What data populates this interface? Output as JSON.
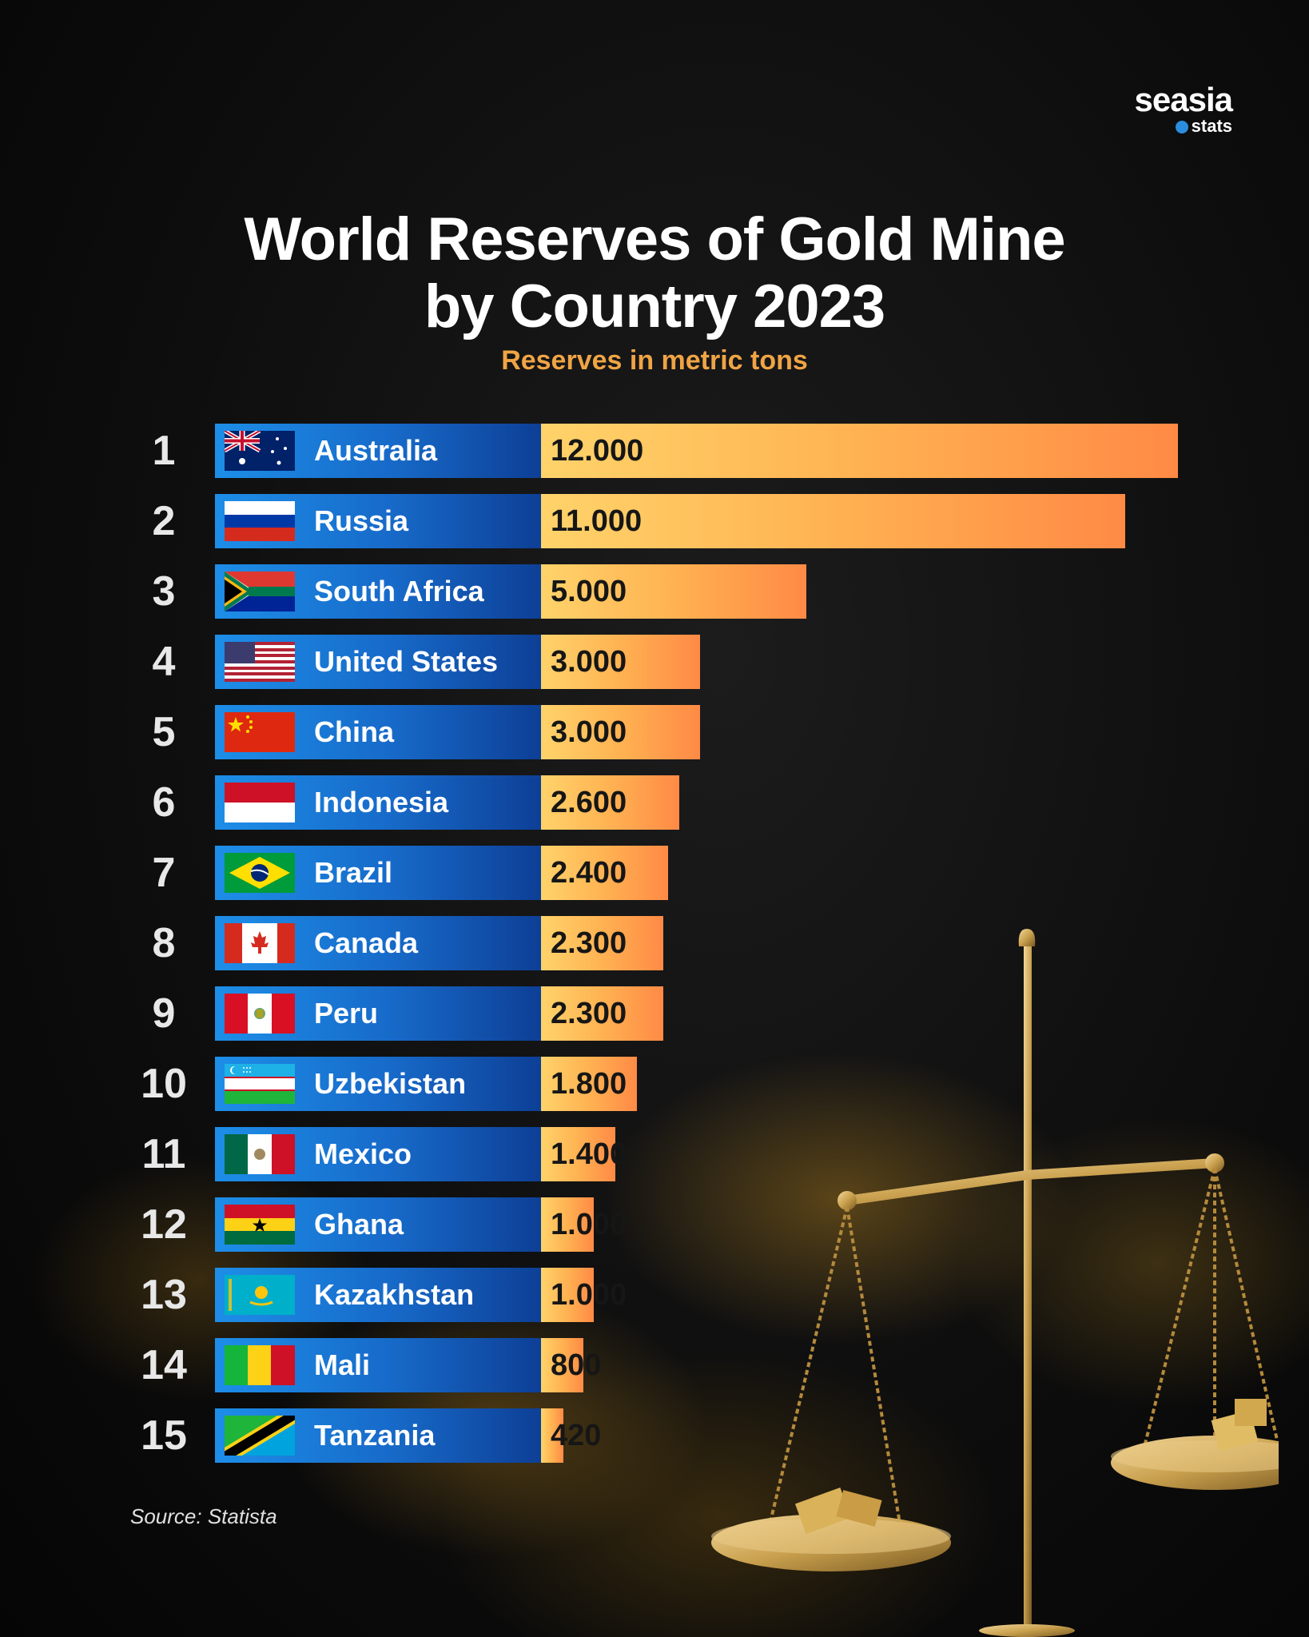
{
  "brand": {
    "name": "seasia",
    "sub": "stats"
  },
  "title_line1": "World Reserves of Gold Mine",
  "title_line2": "by Country 2023",
  "subtitle": "Reserves in metric tons",
  "source": "Source: Statista",
  "colors": {
    "label_blue": "#1769c8",
    "bar_light": "#ffd36a",
    "bar_dark": "#ff8a45",
    "subtitle": "#f0a445"
  },
  "chart_data": {
    "type": "bar",
    "orientation": "horizontal",
    "title": "World Reserves of Gold Mine by Country 2023",
    "subtitle": "Reserves in metric tons",
    "unit": "metric tons",
    "ranks": [
      "1",
      "2",
      "3",
      "4",
      "5",
      "6",
      "7",
      "8",
      "9",
      "10",
      "11",
      "12",
      "13",
      "14",
      "15"
    ],
    "categories": [
      "Australia",
      "Russia",
      "South Africa",
      "United States",
      "China",
      "Indonesia",
      "Brazil",
      "Canada",
      "Peru",
      "Uzbekistan",
      "Mexico",
      "Ghana",
      "Kazakhstan",
      "Mali",
      "Tanzania"
    ],
    "values": [
      12000,
      11000,
      5000,
      3000,
      3000,
      2600,
      2400,
      2300,
      2300,
      1800,
      1400,
      1000,
      1000,
      800,
      420
    ],
    "value_labels": [
      "12.000",
      "11.000",
      "5.000",
      "3.000",
      "3.000",
      "2.600",
      "2.400",
      "2.300",
      "2.300",
      "1.800",
      "1.400",
      "1.000",
      "1.000",
      "800",
      "420"
    ],
    "flags": [
      "australia-flag",
      "russia-flag",
      "south-africa-flag",
      "united-states-flag",
      "china-flag",
      "indonesia-flag",
      "brazil-flag",
      "canada-flag",
      "peru-flag",
      "uzbekistan-flag",
      "mexico-flag",
      "ghana-flag",
      "kazakhstan-flag",
      "mali-flag",
      "tanzania-flag"
    ],
    "source": "Statista"
  }
}
